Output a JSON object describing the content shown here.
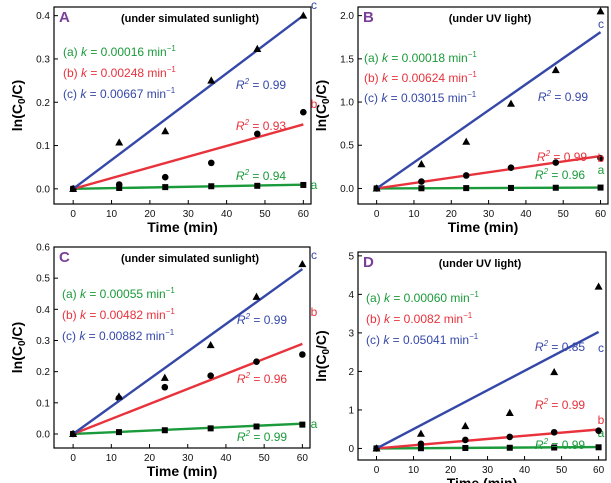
{
  "colors": {
    "a": "#1a9a3a",
    "b": "#e8323c",
    "c": "#3548a8",
    "panel_letter": "#7b3f9b",
    "axis": "#000000"
  },
  "chart_data": [
    {
      "panel": "A",
      "type": "scatter",
      "title": "(under simulated sunlight)",
      "xlabel": "Time (min)",
      "ylabel": "ln(C0/C)",
      "xlim": [
        -5,
        62
      ],
      "ylim": [
        -0.035,
        0.42
      ],
      "xticks": [
        0,
        10,
        20,
        30,
        40,
        50,
        60
      ],
      "yticks": [
        0.0,
        0.1,
        0.2,
        0.3,
        0.4
      ],
      "ytick_labels": [
        "0.0",
        "0.1",
        "0.2",
        "0.3",
        "0.4"
      ],
      "series": [
        {
          "name": "a",
          "marker": "square",
          "x": [
            0,
            12,
            24,
            36,
            48,
            60
          ],
          "y": [
            0,
            0.002,
            0.004,
            0.006,
            0.007,
            0.009
          ],
          "fit": {
            "k": 0.00016,
            "r2": "0.94"
          }
        },
        {
          "name": "b",
          "marker": "circle",
          "x": [
            0,
            12,
            24,
            36,
            48,
            60
          ],
          "y": [
            0,
            0.01,
            0.027,
            0.06,
            0.127,
            0.177
          ],
          "fit": {
            "k": 0.00248,
            "r2": "0.93"
          }
        },
        {
          "name": "c",
          "marker": "triangle",
          "x": [
            0,
            12,
            24,
            36,
            48,
            60
          ],
          "y": [
            0,
            0.107,
            0.133,
            0.25,
            0.323,
            0.4
          ],
          "fit": {
            "k": 0.00667,
            "r2": "0.99"
          }
        }
      ],
      "legend": [
        {
          "series": "a",
          "prefix": "(a) ",
          "k_label": "k",
          "value": " = 0.00016 min",
          "sup": "−1"
        },
        {
          "series": "b",
          "prefix": "(b) ",
          "k_label": "k",
          "value": " = 0.00248 min",
          "sup": "−1"
        },
        {
          "series": "c",
          "prefix": "(c) ",
          "k_label": "k",
          "value": " = 0.00667 min",
          "sup": "−1"
        }
      ]
    },
    {
      "panel": "B",
      "type": "scatter",
      "title": "(under UV light)",
      "xlabel": "Time (min)",
      "ylabel": "ln(C0/C)",
      "xlim": [
        -5,
        62
      ],
      "ylim": [
        -0.18,
        2.1
      ],
      "xticks": [
        0,
        10,
        20,
        30,
        40,
        50,
        60
      ],
      "yticks": [
        0.0,
        0.5,
        1.0,
        1.5,
        2.0
      ],
      "ytick_labels": [
        "0.0",
        "0.5",
        "1.0",
        "1.5",
        "2.0"
      ],
      "series": [
        {
          "name": "a",
          "marker": "square",
          "x": [
            0,
            12,
            24,
            36,
            48,
            60
          ],
          "y": [
            0,
            0.002,
            0.004,
            0.006,
            0.008,
            0.01
          ],
          "fit": {
            "k": 0.00018,
            "r2": "0.96"
          }
        },
        {
          "name": "b",
          "marker": "circle",
          "x": [
            0,
            12,
            24,
            36,
            48,
            60
          ],
          "y": [
            0,
            0.08,
            0.15,
            0.24,
            0.3,
            0.35
          ],
          "fit": {
            "k": 0.00624,
            "r2": "0.99"
          }
        },
        {
          "name": "c",
          "marker": "triangle",
          "x": [
            0,
            12,
            24,
            36,
            48,
            60
          ],
          "y": [
            0,
            0.28,
            0.54,
            0.98,
            1.37,
            2.05
          ],
          "fit": {
            "k": 0.03015,
            "r2": "0.99"
          }
        }
      ],
      "legend": [
        {
          "series": "a",
          "prefix": "(a) ",
          "k_label": "k",
          "value": " = 0.00018 min",
          "sup": "−1"
        },
        {
          "series": "b",
          "prefix": "(b) ",
          "k_label": "k",
          "value": " = 0.00624 min",
          "sup": "−1"
        },
        {
          "series": "c",
          "prefix": "(c) ",
          "k_label": "k",
          "value": " = 0.03015 min",
          "sup": "−1"
        }
      ]
    },
    {
      "panel": "C",
      "type": "scatter",
      "title": "(under simulated sunlight)",
      "xlabel": "Time (min)",
      "ylabel": "ln(C0/C)",
      "xlim": [
        -5,
        62
      ],
      "ylim": [
        -0.045,
        0.6
      ],
      "xticks": [
        0,
        10,
        20,
        30,
        40,
        50,
        60
      ],
      "yticks": [
        0.0,
        0.1,
        0.2,
        0.3,
        0.4,
        0.5,
        0.6
      ],
      "ytick_labels": [
        "0.0",
        "0.1",
        "0.2",
        "0.3",
        "0.4",
        "0.5",
        "0.6"
      ],
      "series": [
        {
          "name": "a",
          "marker": "square",
          "x": [
            0,
            12,
            24,
            36,
            48,
            60
          ],
          "y": [
            0,
            0.006,
            0.012,
            0.018,
            0.024,
            0.03
          ],
          "fit": {
            "k": 0.00055,
            "r2": "0.99"
          }
        },
        {
          "name": "b",
          "marker": "circle",
          "x": [
            0,
            12,
            24,
            36,
            48,
            60
          ],
          "y": [
            0,
            0.115,
            0.15,
            0.187,
            0.232,
            0.255
          ],
          "fit": {
            "k": 0.00482,
            "r2": "0.96"
          }
        },
        {
          "name": "c",
          "marker": "triangle",
          "x": [
            0,
            12,
            24,
            36,
            48,
            60
          ],
          "y": [
            0,
            0.12,
            0.18,
            0.285,
            0.44,
            0.545
          ],
          "fit": {
            "k": 0.00882,
            "r2": "0.99"
          }
        }
      ],
      "legend": [
        {
          "series": "a",
          "prefix": "(a) ",
          "k_label": "k",
          "value": " = 0.00055 min",
          "sup": "−1"
        },
        {
          "series": "b",
          "prefix": "(b) ",
          "k_label": "k",
          "value": " = 0.00482 min",
          "sup": "−1"
        },
        {
          "series": "c",
          "prefix": "(c) ",
          "k_label": "k",
          "value": " = 0.00882 min",
          "sup": "−1"
        }
      ]
    },
    {
      "panel": "D",
      "type": "scatter",
      "title": "(under UV light)",
      "xlabel": "Time (min)",
      "ylabel": "ln(C0/C)",
      "xlim": [
        -5,
        62
      ],
      "ylim": [
        -0.3,
        5.1
      ],
      "xticks": [
        0,
        10,
        20,
        30,
        40,
        50,
        60
      ],
      "yticks": [
        0,
        1,
        2,
        3,
        4,
        5
      ],
      "ytick_labels": [
        "0",
        "1",
        "2",
        "3",
        "4",
        "5"
      ],
      "series": [
        {
          "name": "a",
          "marker": "square",
          "x": [
            0,
            12,
            24,
            36,
            48,
            60
          ],
          "y": [
            0,
            0.006,
            0.012,
            0.018,
            0.024,
            0.03
          ],
          "fit": {
            "k": 0.0006,
            "r2": "0.99"
          }
        },
        {
          "name": "b",
          "marker": "circle",
          "x": [
            0,
            12,
            24,
            36,
            48,
            60
          ],
          "y": [
            0,
            0.12,
            0.22,
            0.3,
            0.42,
            0.46
          ],
          "fit": {
            "k": 0.0082,
            "r2": "0.99"
          }
        },
        {
          "name": "c",
          "marker": "triangle",
          "x": [
            0,
            12,
            24,
            36,
            48,
            60
          ],
          "y": [
            0,
            0.38,
            0.58,
            0.92,
            1.98,
            4.2
          ],
          "fit": {
            "k": 0.05041,
            "r2": "0.85"
          }
        }
      ],
      "legend": [
        {
          "series": "a",
          "prefix": "(a) ",
          "k_label": "k",
          "value": " = 0.00060 min",
          "sup": "−1"
        },
        {
          "series": "b",
          "prefix": "(b) ",
          "k_label": "k",
          "value": " = 0.0082 min",
          "sup": "−1"
        },
        {
          "series": "c",
          "prefix": "(c) ",
          "k_label": "k",
          "value": " = 0.05041 min",
          "sup": "−1"
        }
      ]
    }
  ]
}
